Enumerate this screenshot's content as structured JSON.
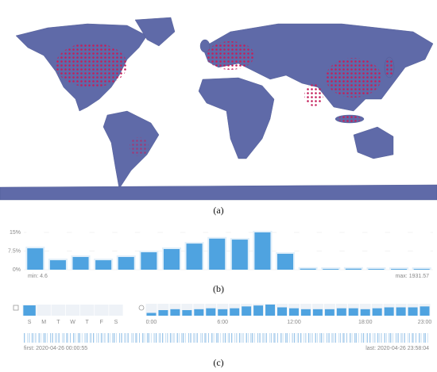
{
  "captions": {
    "a": "(a)",
    "b": "(b)",
    "c": "(c)"
  },
  "timeline": {
    "first": "first: 2020-04-26 00:00:55",
    "last": "last: 2020-04-26 23:58:04"
  },
  "chart_data": [
    {
      "type": "bar",
      "color": "#4fa3e0",
      "categories": [
        null,
        null,
        null,
        null,
        null,
        null,
        null,
        null,
        null,
        null,
        null,
        null,
        null,
        null,
        null,
        null,
        null,
        null
      ],
      "values": [
        8.6,
        3.8,
        5.1,
        3.8,
        5.1,
        7,
        8.3,
        10.5,
        12.5,
        12.1,
        15,
        6.4,
        0.4,
        0.3,
        0.4,
        0.3,
        0.3,
        0.3
      ],
      "ylim": [
        0,
        15
      ],
      "yticks": [
        {
          "value": 0,
          "label": "0%"
        },
        {
          "value": 7.5,
          "label": "7.5%"
        },
        {
          "value": 15,
          "label": "15%"
        }
      ],
      "grid": true,
      "annotations": {
        "min": "min: 4.6",
        "max": "max: 1931.57"
      }
    },
    {
      "type": "bar",
      "color": "#4fa3e0",
      "categories": [
        "S",
        "M",
        "T",
        "W",
        "T",
        "F",
        "S"
      ],
      "values": [
        12,
        0,
        0,
        0,
        0,
        0,
        0
      ]
    },
    {
      "type": "bar",
      "color": "#4fa3e0",
      "categories": [
        "0:00",
        null,
        null,
        null,
        null,
        null,
        "6:00",
        null,
        null,
        null,
        null,
        null,
        "12:00",
        null,
        null,
        null,
        null,
        null,
        "18:00",
        null,
        null,
        null,
        null,
        "23:00"
      ],
      "values": [
        3,
        6,
        7,
        6,
        7,
        8,
        7,
        8,
        10,
        11,
        12,
        9,
        8,
        7,
        7,
        7,
        8,
        8,
        7,
        8,
        9,
        9,
        9,
        10
      ]
    }
  ]
}
